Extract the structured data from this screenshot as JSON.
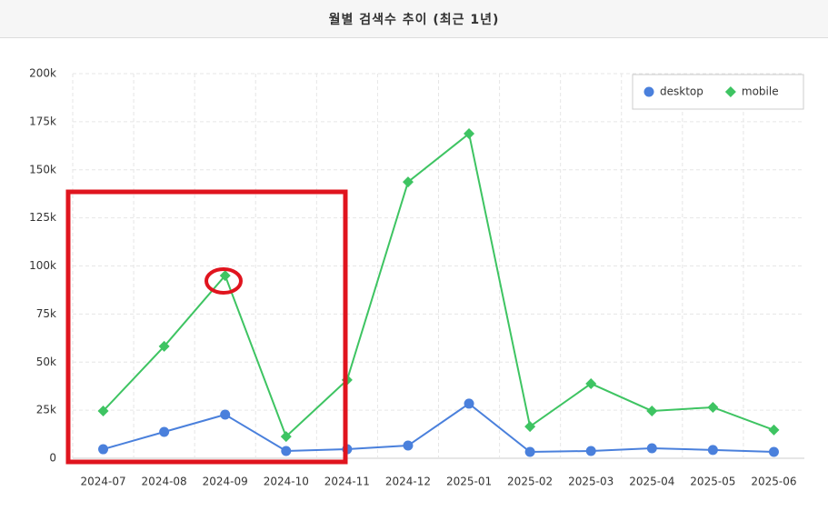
{
  "chart_data": {
    "type": "line",
    "title": "월별 검색수 추이 (최근 1년)",
    "categories": [
      "2024-07",
      "2024-08",
      "2024-09",
      "2024-10",
      "2024-11",
      "2024-12",
      "2025-01",
      "2025-02",
      "2025-03",
      "2025-04",
      "2025-05",
      "2025-06"
    ],
    "series": [
      {
        "name": "desktop",
        "color": "#4a80dc",
        "marker": "circle",
        "values": [
          4700,
          13700,
          22700,
          3800,
          4700,
          6600,
          28400,
          3300,
          3800,
          5200,
          4300,
          3300
        ]
      },
      {
        "name": "mobile",
        "color": "#3ec462",
        "marker": "diamond",
        "values": [
          24600,
          58200,
          95000,
          11300,
          40700,
          143700,
          168800,
          16500,
          38800,
          24600,
          26500,
          14700
        ]
      }
    ],
    "ylim": [
      0,
      200000
    ],
    "yticks": [
      0,
      {
        "value": 25000,
        "label": "25k"
      },
      {
        "value": 50000,
        "label": "50k"
      },
      {
        "value": 75000,
        "label": "75k"
      },
      {
        "value": 100000,
        "label": "100k"
      },
      {
        "value": 125000,
        "label": "125k"
      },
      {
        "value": 150000,
        "label": "150k"
      },
      {
        "value": 175000,
        "label": "175k"
      },
      {
        "value": 200000,
        "label": "200k"
      }
    ],
    "grid": true,
    "legend": "upper right"
  }
}
